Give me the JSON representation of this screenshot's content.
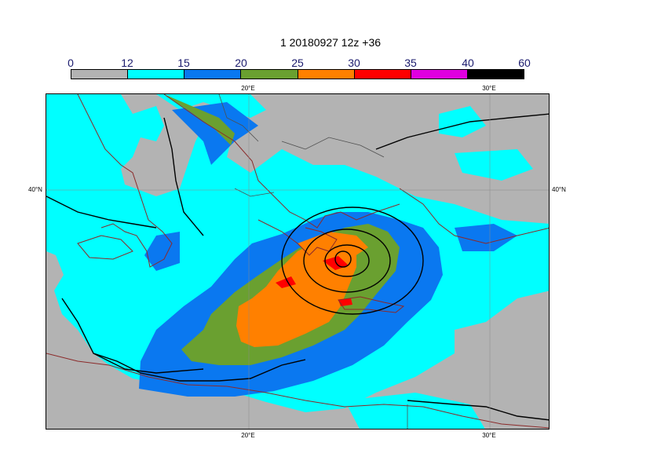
{
  "title": "1 20180927 12z +36",
  "colorbar": {
    "labels": [
      "0",
      "12",
      "15",
      "20",
      "25",
      "30",
      "35",
      "40",
      "60"
    ],
    "colors": [
      "#b3b3b3",
      "#00ffff",
      "#0a78f0",
      "#6aa030",
      "#ff8000",
      "#ff0000",
      "#e000e0",
      "#000000"
    ]
  },
  "axes": {
    "lon_label_left": "20°E",
    "lon_label_right": "30°E",
    "lat_label": "40°N"
  },
  "map_colors": {
    "land": "#b3b3b3",
    "coast": "#8b2a2a",
    "border": "#505050",
    "contour": "#000000"
  }
}
